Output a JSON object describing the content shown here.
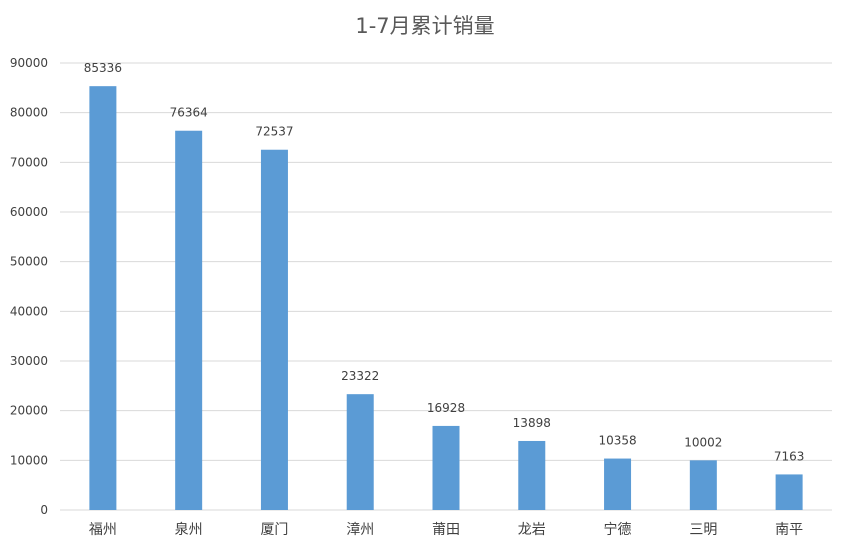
{
  "chart_data": {
    "type": "bar",
    "title": "1-7月累计销量",
    "categories": [
      "福州",
      "泉州",
      "厦门",
      "漳州",
      "莆田",
      "龙岩",
      "宁德",
      "三明",
      "南平"
    ],
    "values": [
      85336,
      76364,
      72537,
      23322,
      16928,
      13898,
      10358,
      10002,
      7163
    ],
    "data_labels": [
      "85336",
      "76364",
      "72537",
      "23322",
      "16928",
      "13898",
      "10358",
      "10002",
      "7163"
    ],
    "ylim": [
      0,
      90000
    ],
    "yticks": [
      0,
      10000,
      20000,
      30000,
      40000,
      50000,
      60000,
      70000,
      80000,
      90000
    ],
    "ytick_labels": [
      "0",
      "10000",
      "20000",
      "30000",
      "40000",
      "50000",
      "60000",
      "70000",
      "80000",
      "90000"
    ],
    "grid": true,
    "legend": "none",
    "bar_color": "#5b9bd5"
  }
}
